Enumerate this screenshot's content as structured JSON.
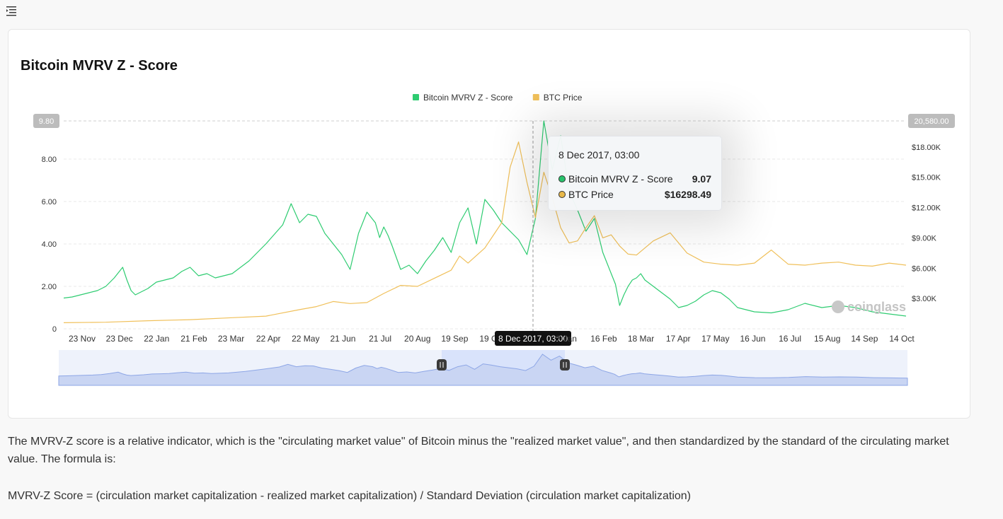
{
  "icons": {
    "menu": "menu-icon",
    "watermark": "coinglass-logo"
  },
  "card": {
    "title": "Bitcoin MVRV Z - Score",
    "watermark": "coinglass"
  },
  "tooltip": {
    "date": "8 Dec 2017, 03:00",
    "rows": [
      {
        "name": "Bitcoin MVRV Z - Score",
        "value": "9.07",
        "color": "#27c26b"
      },
      {
        "name": "BTC Price",
        "value": "$16298.49",
        "color": "#e8b84a"
      }
    ]
  },
  "chart_data": {
    "type": "line",
    "legend": [
      {
        "name": "Bitcoin MVRV Z - Score",
        "color": "#2ecc71"
      },
      {
        "name": "BTC Price",
        "color": "#f0c05a"
      }
    ],
    "legend_placement": "top-center",
    "grid": true,
    "x_ticks": [
      "23 Nov",
      "23 Dec",
      "22 Jan",
      "21 Feb",
      "23 Mar",
      "22 Apr",
      "22 May",
      "21 Jun",
      "21 Jul",
      "20 Aug",
      "19 Sep",
      "19 Oct",
      "8 Dec 2017, 03:00",
      "7 Jan",
      "16 Feb",
      "18 Mar",
      "17 Apr",
      "17 May",
      "16 Jun",
      "16 Jul",
      "15 Aug",
      "14 Sep",
      "14 Oct"
    ],
    "x_highlight_index": 12,
    "y_left": {
      "ticks": [
        "0",
        "2.00",
        "4.00",
        "6.00",
        "8.00"
      ],
      "tick_values": [
        0,
        2,
        4,
        6,
        8
      ],
      "max_label": "9.80",
      "range": [
        0,
        9.8
      ]
    },
    "y_right": {
      "ticks": [
        "$3.00K",
        "$6.00K",
        "$9.00K",
        "$12.00K",
        "$15.00K",
        "$18.00K"
      ],
      "tick_values": [
        3000,
        6000,
        9000,
        12000,
        15000,
        18000
      ],
      "max_label": "20,580.00",
      "range": [
        0,
        20580
      ]
    },
    "series": [
      {
        "name": "Bitcoin MVRV Z - Score",
        "color": "#2ecc71",
        "axis": "left",
        "x": [
          0,
          0.01,
          0.02,
          0.03,
          0.04,
          0.05,
          0.06,
          0.07,
          0.075,
          0.08,
          0.085,
          0.09,
          0.1,
          0.11,
          0.12,
          0.13,
          0.14,
          0.15,
          0.16,
          0.17,
          0.18,
          0.2,
          0.22,
          0.24,
          0.26,
          0.27,
          0.28,
          0.29,
          0.3,
          0.31,
          0.32,
          0.33,
          0.34,
          0.35,
          0.36,
          0.37,
          0.375,
          0.38,
          0.385,
          0.39,
          0.4,
          0.41,
          0.42,
          0.43,
          0.44,
          0.45,
          0.46,
          0.47,
          0.48,
          0.49,
          0.5,
          0.51,
          0.52,
          0.53,
          0.54,
          0.55,
          0.56,
          0.57,
          0.58,
          0.59,
          0.6,
          0.61,
          0.62,
          0.63,
          0.64,
          0.65,
          0.655,
          0.66,
          0.665,
          0.67,
          0.675,
          0.68,
          0.685,
          0.69,
          0.7,
          0.71,
          0.72,
          0.73,
          0.74,
          0.75,
          0.76,
          0.77,
          0.78,
          0.79,
          0.8,
          0.82,
          0.84,
          0.86,
          0.88,
          0.9,
          0.92,
          0.94,
          0.96,
          0.98,
          1.0
        ],
        "values": [
          1.45,
          1.5,
          1.6,
          1.7,
          1.8,
          2.0,
          2.4,
          2.9,
          2.3,
          1.8,
          1.6,
          1.7,
          1.9,
          2.2,
          2.3,
          2.4,
          2.7,
          2.9,
          2.5,
          2.6,
          2.4,
          2.6,
          3.2,
          4.0,
          4.9,
          5.9,
          5.0,
          5.4,
          5.3,
          4.5,
          4.0,
          3.5,
          2.8,
          4.5,
          5.5,
          5.0,
          4.3,
          4.8,
          4.4,
          3.9,
          2.8,
          3.0,
          2.6,
          3.2,
          3.7,
          4.3,
          3.6,
          5.0,
          5.7,
          4.0,
          6.1,
          5.6,
          5.0,
          4.6,
          4.2,
          3.5,
          5.2,
          9.8,
          7.5,
          9.1,
          6.5,
          5.6,
          4.6,
          5.2,
          3.6,
          2.6,
          2.1,
          1.1,
          1.6,
          2.0,
          2.3,
          2.4,
          2.6,
          2.3,
          2.0,
          1.7,
          1.4,
          1.0,
          1.1,
          1.3,
          1.6,
          1.8,
          1.7,
          1.4,
          1.0,
          0.8,
          0.75,
          0.9,
          1.2,
          1.0,
          1.1,
          1.0,
          0.8,
          0.7,
          0.6
        ]
      },
      {
        "name": "BTC Price",
        "color": "#f0c05a",
        "axis": "right",
        "x": [
          0,
          0.05,
          0.1,
          0.15,
          0.2,
          0.24,
          0.28,
          0.3,
          0.32,
          0.34,
          0.36,
          0.38,
          0.4,
          0.42,
          0.44,
          0.46,
          0.47,
          0.48,
          0.5,
          0.52,
          0.53,
          0.54,
          0.55,
          0.56,
          0.57,
          0.58,
          0.59,
          0.6,
          0.61,
          0.62,
          0.63,
          0.64,
          0.65,
          0.66,
          0.67,
          0.68,
          0.7,
          0.72,
          0.74,
          0.76,
          0.78,
          0.8,
          0.82,
          0.84,
          0.86,
          0.88,
          0.9,
          0.92,
          0.94,
          0.96,
          0.98,
          1.0
        ],
        "values": [
          600,
          650,
          800,
          900,
          1100,
          1250,
          1900,
          2200,
          2700,
          2500,
          2600,
          3500,
          4300,
          4200,
          5000,
          5800,
          7200,
          6500,
          8000,
          10500,
          16000,
          18500,
          14500,
          11000,
          15500,
          13000,
          10000,
          8500,
          8700,
          10000,
          11200,
          9000,
          9300,
          8200,
          7400,
          7300,
          8700,
          9500,
          7500,
          6600,
          6400,
          6300,
          6500,
          7800,
          6400,
          6300,
          6500,
          6600,
          6300,
          6200,
          6500,
          6300
        ]
      }
    ]
  },
  "description": "The MVRV-Z score is a relative indicator, which is the \"circulating market value\" of Bitcoin minus the \"realized market value\", and then standardized by the standard of the circulating market value. The formula is:",
  "formula": "MVRV-Z Score = (circulation market capitalization - realized market capitalization) / Standard Deviation (circulation market capitalization)"
}
